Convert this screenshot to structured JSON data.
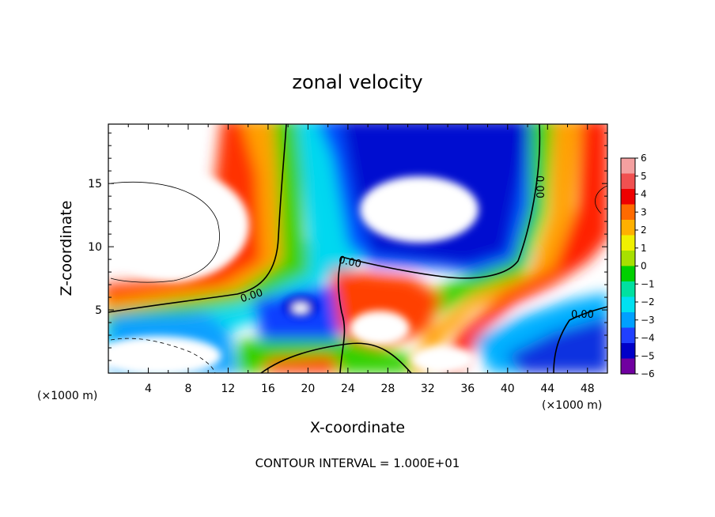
{
  "chart_data": {
    "type": "heatmap",
    "title": "zonal velocity",
    "xlabel": "X-coordinate",
    "ylabel": "Z-coordinate",
    "x_unit_left": "(×1000 m)",
    "x_unit_right": "(×1000 m)",
    "footer": "CONTOUR INTERVAL = 1.000E+01",
    "xlim": [
      0,
      50
    ],
    "ylim": [
      0,
      19.7
    ],
    "x_ticks": [
      4,
      8,
      12,
      16,
      20,
      24,
      28,
      32,
      36,
      40,
      44,
      48
    ],
    "x_tick_labels": [
      "4",
      "8",
      "12",
      "16",
      "20",
      "24",
      "28",
      "32",
      "36",
      "40",
      "44",
      "48"
    ],
    "y_ticks": [
      5,
      10,
      15
    ],
    "y_tick_labels": [
      "5",
      "10",
      "15"
    ],
    "colorbar": {
      "min": -6,
      "max": 6,
      "levels": [
        6,
        5,
        4,
        3,
        2,
        1,
        0,
        -1,
        -2,
        -3,
        -4,
        -5,
        -6
      ],
      "labels": [
        "6",
        "5",
        "4",
        "3",
        "2",
        "1",
        "0",
        "−1",
        "−2",
        "−3",
        "−4",
        "−5",
        "−6"
      ],
      "colors": [
        "#f4a0a0",
        "#f05050",
        "#ee0000",
        "#ff6a00",
        "#ffb000",
        "#f0f000",
        "#a8e000",
        "#00d000",
        "#00e0a0",
        "#00e0f0",
        "#00a0ff",
        "#2040ff",
        "#0000c8",
        "#7000a0"
      ]
    },
    "contour_labels": [
      "0.00",
      "0.00",
      "0.00",
      "0.00"
    ],
    "fields": {
      "positive_saturation_color": "#ffffff",
      "negative_saturation_color": "#ffffff"
    }
  }
}
